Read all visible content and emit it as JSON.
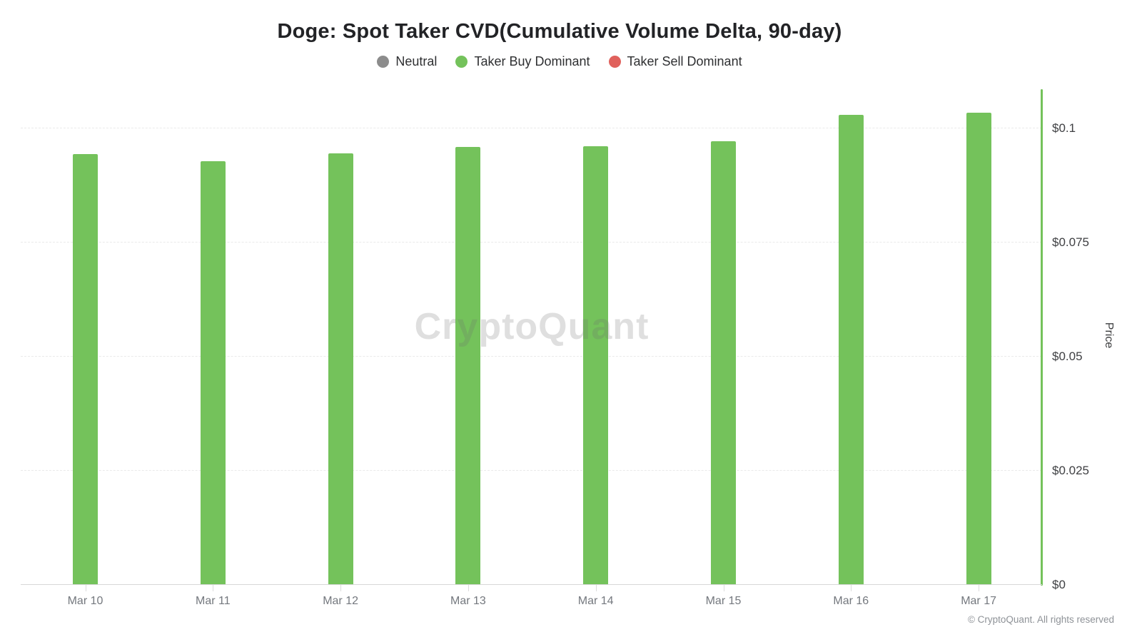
{
  "header": {
    "title": "Doge: Spot Taker CVD(Cumulative Volume Delta, 90-day)"
  },
  "legend": {
    "items": [
      {
        "label": "Neutral",
        "color": "#8c8c8c"
      },
      {
        "label": "Taker Buy Dominant",
        "color": "#74c25b"
      },
      {
        "label": "Taker Sell Dominant",
        "color": "#e0615c"
      }
    ]
  },
  "watermark": "CryptoQuant",
  "footer": "© CryptoQuant. All rights reserved",
  "chart_data": {
    "type": "bar",
    "title": "Doge: Spot Taker CVD(Cumulative Volume Delta, 90-day)",
    "categories": [
      "Mar 10",
      "Mar 11",
      "Mar 12",
      "Mar 13",
      "Mar 14",
      "Mar 15",
      "Mar 16",
      "Mar 17"
    ],
    "series": [
      {
        "name": "Price",
        "dominance": "Taker Buy Dominant",
        "color": "#74c25b",
        "values": [
          0.0943,
          0.0928,
          0.0946,
          0.096,
          0.0961,
          0.0972,
          0.1029,
          0.1034
        ]
      }
    ],
    "xlabel": "",
    "ylabel": "Price",
    "y_ticks": [
      {
        "label": "$0",
        "value": 0
      },
      {
        "label": "$0.025",
        "value": 0.025
      },
      {
        "label": "$0.05",
        "value": 0.05
      },
      {
        "label": "$0.075",
        "value": 0.075
      },
      {
        "label": "$0.1",
        "value": 0.1
      }
    ],
    "ylim": [
      0,
      0.1086
    ],
    "grid": "horizontal dashed light-gray",
    "legend_position": "top",
    "axis_color": "#74c25b",
    "axis_side": "right"
  }
}
